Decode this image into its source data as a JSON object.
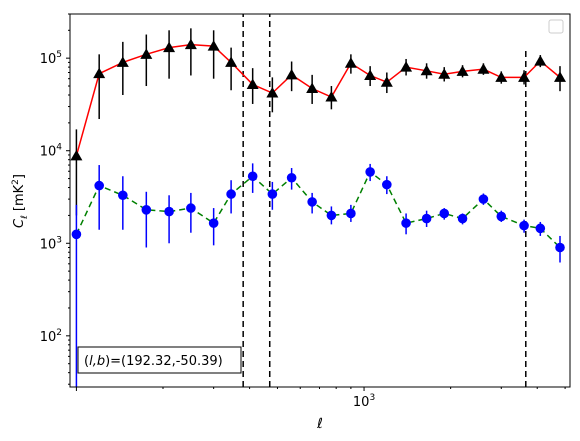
{
  "chart_data": {
    "type": "scatter",
    "xscale": "log",
    "yscale": "log",
    "xlabel": "ℓ",
    "ylabel": "C_ℓ [mK²]",
    "ylabel_parts": {
      "symbol": "C",
      "subscript": "ℓ",
      "unit_open": "[mK",
      "unit_sup": "2",
      "unit_close": "]"
    },
    "xlim": [
      95,
      5200
    ],
    "ylim": [
      28,
      300000
    ],
    "xticks": [
      {
        "value": 1000,
        "base": "10",
        "exp": "3"
      }
    ],
    "yticks": [
      {
        "value": 100,
        "base": "10",
        "exp": "2"
      },
      {
        "value": 1000,
        "base": "10",
        "exp": "3"
      },
      {
        "value": 10000,
        "base": "10",
        "exp": "4"
      },
      {
        "value": 100000,
        "base": "10",
        "exp": "5"
      }
    ],
    "annotation": "(l,b)=(192.32,-50.39)",
    "annotation_parts": {
      "open": "(",
      "vars": "l,b",
      "rest": ")=(192.32,-50.39)"
    },
    "legend": {
      "location": "upper right",
      "entries": []
    },
    "vlines": [
      {
        "x": 380,
        "style": "dashed",
        "color": "#000000",
        "ymin": 28,
        "ymax": 300000
      },
      {
        "x": 470,
        "style": "dashed",
        "color": "#000000",
        "ymin": 28,
        "ymax": 300000
      },
      {
        "x": 3650,
        "style": "dashed",
        "color": "#000000",
        "ymin": 28,
        "ymax": 120000
      }
    ],
    "series": [
      {
        "marker": "triangle",
        "marker_color": "#000000",
        "line_color": "#ff0000",
        "line_style": "solid",
        "errorbar_color": "#000000",
        "points": [
          {
            "x": 100,
            "y": 8800,
            "lo": 2000,
            "hi": 17000
          },
          {
            "x": 120,
            "y": 68000,
            "lo": 22000,
            "hi": 110000
          },
          {
            "x": 145,
            "y": 90000,
            "lo": 40000,
            "hi": 150000
          },
          {
            "x": 175,
            "y": 110000,
            "lo": 50000,
            "hi": 180000
          },
          {
            "x": 210,
            "y": 130000,
            "lo": 60000,
            "hi": 200000
          },
          {
            "x": 250,
            "y": 140000,
            "lo": 65000,
            "hi": 210000
          },
          {
            "x": 300,
            "y": 135000,
            "lo": 60000,
            "hi": 200000
          },
          {
            "x": 345,
            "y": 90000,
            "lo": 45000,
            "hi": 130000
          },
          {
            "x": 410,
            "y": 52000,
            "lo": 32000,
            "hi": 78000
          },
          {
            "x": 480,
            "y": 42000,
            "lo": 26000,
            "hi": 62000
          },
          {
            "x": 560,
            "y": 66000,
            "lo": 44000,
            "hi": 92000
          },
          {
            "x": 660,
            "y": 47000,
            "lo": 32000,
            "hi": 66000
          },
          {
            "x": 770,
            "y": 38000,
            "lo": 28000,
            "hi": 50000
          },
          {
            "x": 900,
            "y": 88000,
            "lo": 68000,
            "hi": 110000
          },
          {
            "x": 1050,
            "y": 65000,
            "lo": 50000,
            "hi": 82000
          },
          {
            "x": 1200,
            "y": 55000,
            "lo": 42000,
            "hi": 70000
          },
          {
            "x": 1400,
            "y": 80000,
            "lo": 65000,
            "hi": 98000
          },
          {
            "x": 1650,
            "y": 73000,
            "lo": 60000,
            "hi": 88000
          },
          {
            "x": 1900,
            "y": 67000,
            "lo": 56000,
            "hi": 80000
          },
          {
            "x": 2200,
            "y": 72000,
            "lo": 62000,
            "hi": 84000
          },
          {
            "x": 2600,
            "y": 76000,
            "lo": 66000,
            "hi": 88000
          },
          {
            "x": 3000,
            "y": 62000,
            "lo": 53000,
            "hi": 72000
          },
          {
            "x": 3600,
            "y": 62000,
            "lo": 52000,
            "hi": 74000
          },
          {
            "x": 4100,
            "y": 93000,
            "lo": 80000,
            "hi": 108000
          },
          {
            "x": 4800,
            "y": 62000,
            "lo": 44000,
            "hi": 82000
          }
        ]
      },
      {
        "marker": "circle",
        "marker_color": "#0000ff",
        "line_color": "#008000",
        "line_style": "dashed",
        "errorbar_color": "#0000ff",
        "points": [
          {
            "x": 100,
            "y": 1250,
            "lo": 28,
            "hi": 2600
          },
          {
            "x": 120,
            "y": 4200,
            "lo": 1400,
            "hi": 7000
          },
          {
            "x": 145,
            "y": 3300,
            "lo": 1400,
            "hi": 5300
          },
          {
            "x": 175,
            "y": 2300,
            "lo": 900,
            "hi": 3600
          },
          {
            "x": 210,
            "y": 2200,
            "lo": 1000,
            "hi": 3300
          },
          {
            "x": 250,
            "y": 2400,
            "lo": 1300,
            "hi": 3500
          },
          {
            "x": 300,
            "y": 1650,
            "lo": 950,
            "hi": 2400
          },
          {
            "x": 345,
            "y": 3400,
            "lo": 2100,
            "hi": 4800
          },
          {
            "x": 410,
            "y": 5300,
            "lo": 3500,
            "hi": 7300
          },
          {
            "x": 480,
            "y": 3400,
            "lo": 2300,
            "hi": 4600
          },
          {
            "x": 560,
            "y": 5100,
            "lo": 3800,
            "hi": 6500
          },
          {
            "x": 660,
            "y": 2800,
            "lo": 2100,
            "hi": 3500
          },
          {
            "x": 770,
            "y": 2000,
            "lo": 1600,
            "hi": 2500
          },
          {
            "x": 900,
            "y": 2100,
            "lo": 1700,
            "hi": 2600
          },
          {
            "x": 1050,
            "y": 5900,
            "lo": 4700,
            "hi": 7200
          },
          {
            "x": 1200,
            "y": 4300,
            "lo": 3400,
            "hi": 5300
          },
          {
            "x": 1400,
            "y": 1650,
            "lo": 1250,
            "hi": 2100
          },
          {
            "x": 1650,
            "y": 1850,
            "lo": 1500,
            "hi": 2250
          },
          {
            "x": 1900,
            "y": 2100,
            "lo": 1800,
            "hi": 2400
          },
          {
            "x": 2200,
            "y": 1850,
            "lo": 1600,
            "hi": 2100
          },
          {
            "x": 2600,
            "y": 3000,
            "lo": 2600,
            "hi": 3450
          },
          {
            "x": 3000,
            "y": 1950,
            "lo": 1700,
            "hi": 2250
          },
          {
            "x": 3600,
            "y": 1550,
            "lo": 1300,
            "hi": 1800
          },
          {
            "x": 4100,
            "y": 1450,
            "lo": 1200,
            "hi": 1700
          },
          {
            "x": 4800,
            "y": 900,
            "lo": 620,
            "hi": 1200
          }
        ]
      }
    ]
  }
}
